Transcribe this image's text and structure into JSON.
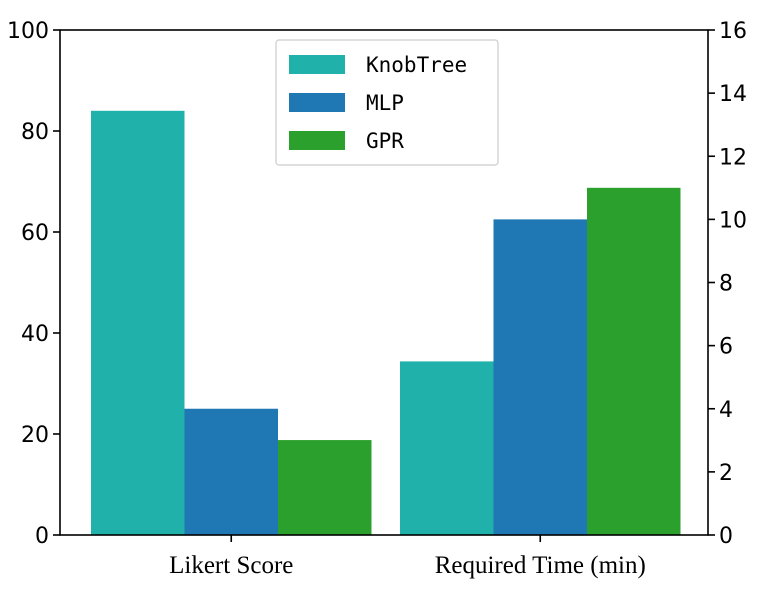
{
  "chart_data": {
    "type": "bar",
    "categories": [
      "Likert Score",
      "Required Time (min)"
    ],
    "series": [
      {
        "name": "KnobTree",
        "color": "#20b2aa",
        "axis": "left",
        "values": [
          84,
          5.5
        ]
      },
      {
        "name": "MLP",
        "color": "#1f77b4",
        "axis": "left",
        "values": [
          25,
          10
        ]
      },
      {
        "name": "GPR",
        "color": "#2ca02c",
        "axis": "left",
        "values": [
          18.8,
          11
        ]
      }
    ],
    "bar_axis_by_category": [
      "left",
      "right"
    ],
    "left_axis": {
      "ylim": [
        0,
        100
      ],
      "ticks": [
        "0",
        "20",
        "40",
        "60",
        "80",
        "100"
      ]
    },
    "right_axis": {
      "ylim": [
        0,
        16
      ],
      "ticks": [
        "0",
        "2",
        "4",
        "6",
        "8",
        "10",
        "12",
        "14",
        "16"
      ]
    },
    "legend": {
      "position": "top-center"
    },
    "grid": false
  }
}
